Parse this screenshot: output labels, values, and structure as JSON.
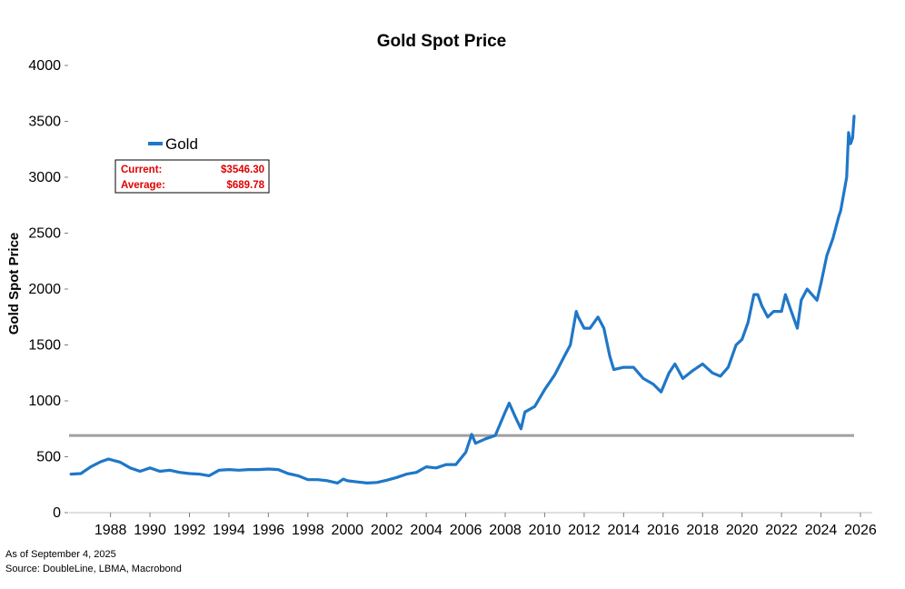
{
  "chart_data": {
    "type": "line",
    "title": "Gold Spot Price",
    "xlabel": "",
    "ylabel": "Gold Spot Price",
    "xlim": [
      1985.9,
      2026.6
    ],
    "ylim": [
      0,
      4000
    ],
    "yticks": [
      0,
      500,
      1000,
      1500,
      2000,
      2500,
      3000,
      3500,
      4000
    ],
    "xticks": [
      1988,
      1990,
      1992,
      1994,
      1996,
      1998,
      2000,
      2002,
      2004,
      2006,
      2008,
      2010,
      2012,
      2014,
      2016,
      2018,
      2020,
      2022,
      2024,
      2026
    ],
    "legend_position": "top-left",
    "series": [
      {
        "name": "Gold",
        "color": "#1f77c8",
        "x": [
          1986.0,
          1986.5,
          1987.0,
          1987.5,
          1987.9,
          1988.5,
          1989.0,
          1989.5,
          1990.0,
          1990.5,
          1991.0,
          1991.5,
          1992.0,
          1992.5,
          1993.0,
          1993.5,
          1994.0,
          1994.5,
          1995.0,
          1995.5,
          1996.0,
          1996.5,
          1997.0,
          1997.5,
          1998.0,
          1998.5,
          1999.0,
          1999.5,
          1999.8,
          2000.0,
          2000.5,
          2001.0,
          2001.5,
          2002.0,
          2002.5,
          2003.0,
          2003.5,
          2004.0,
          2004.5,
          2005.0,
          2005.5,
          2006.0,
          2006.3,
          2006.5,
          2007.0,
          2007.5,
          2008.0,
          2008.2,
          2008.5,
          2008.8,
          2009.0,
          2009.5,
          2010.0,
          2010.5,
          2011.0,
          2011.3,
          2011.6,
          2011.7,
          2012.0,
          2012.3,
          2012.7,
          2013.0,
          2013.3,
          2013.5,
          2014.0,
          2014.5,
          2015.0,
          2015.5,
          2015.9,
          2016.3,
          2016.6,
          2017.0,
          2017.5,
          2018.0,
          2018.5,
          2018.9,
          2019.3,
          2019.7,
          2020.0,
          2020.3,
          2020.6,
          2020.8,
          2021.0,
          2021.3,
          2021.6,
          2022.0,
          2022.2,
          2022.5,
          2022.8,
          2023.0,
          2023.3,
          2023.8,
          2024.0,
          2024.3,
          2024.6,
          2024.9,
          2025.0,
          2025.3,
          2025.4,
          2025.5,
          2025.6,
          2025.68
        ],
        "values": [
          345,
          350,
          410,
          455,
          480,
          450,
          400,
          370,
          400,
          370,
          380,
          360,
          350,
          345,
          330,
          380,
          385,
          380,
          385,
          385,
          390,
          385,
          350,
          330,
          295,
          295,
          285,
          265,
          300,
          285,
          275,
          265,
          270,
          290,
          315,
          345,
          360,
          410,
          400,
          430,
          430,
          540,
          700,
          620,
          660,
          690,
          900,
          980,
          860,
          750,
          900,
          950,
          1100,
          1230,
          1400,
          1500,
          1800,
          1750,
          1650,
          1650,
          1750,
          1650,
          1400,
          1280,
          1300,
          1300,
          1200,
          1150,
          1080,
          1250,
          1330,
          1200,
          1270,
          1330,
          1250,
          1220,
          1300,
          1500,
          1550,
          1700,
          1950,
          1950,
          1850,
          1750,
          1800,
          1800,
          1950,
          1800,
          1650,
          1900,
          2000,
          1900,
          2050,
          2300,
          2450,
          2650,
          2700,
          3000,
          3400,
          3300,
          3350,
          3546
        ]
      }
    ],
    "reference_line": {
      "value": 689.78,
      "color": "#a0a0a0"
    },
    "stats": {
      "current_label": "Current:",
      "current_value": "$3546.30",
      "average_label": "Average:",
      "average_value": "$689.78"
    }
  },
  "footer": {
    "as_of": "As of September 4, 2025",
    "source": "Source: DoubleLine, LBMA, Macrobond"
  }
}
